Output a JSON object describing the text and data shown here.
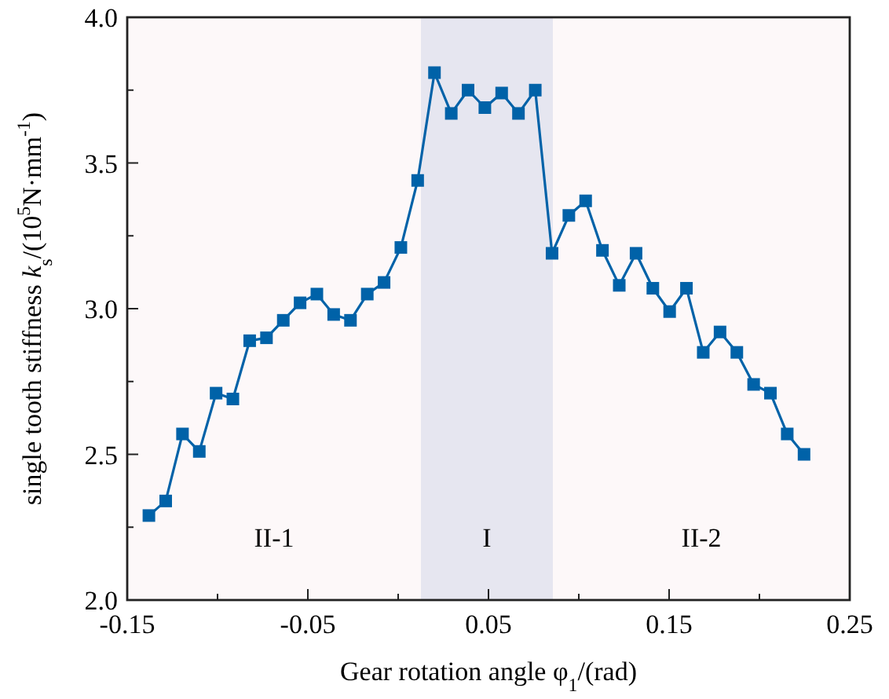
{
  "chart_data": {
    "type": "line",
    "xlabel": "Gear rotation angle  φ$_{1}$/(rad)",
    "ylabel": "single tooth stiffness k$_{s}$/(10$^{5}$N·mm$^{-1}$)",
    "x": [
      -0.138,
      -0.1287,
      -0.1194,
      -0.1101,
      -0.1008,
      -0.0915,
      -0.0822,
      -0.0729,
      -0.0636,
      -0.0543,
      -0.045,
      -0.0357,
      -0.0264,
      -0.0171,
      -0.0078,
      0.0015,
      0.0108,
      0.0201,
      0.0294,
      0.0387,
      0.048,
      0.0573,
      0.0666,
      0.0759,
      0.0852,
      0.0945,
      0.1038,
      0.1131,
      0.1224,
      0.1317,
      0.141,
      0.1503,
      0.1596,
      0.1689,
      0.1782,
      0.1875,
      0.1968,
      0.2061,
      0.2154,
      0.2247
    ],
    "series": [
      {
        "color": "#0062a8",
        "values": [
          2.29,
          2.34,
          2.57,
          2.51,
          2.71,
          2.69,
          2.89,
          2.9,
          2.96,
          3.02,
          3.05,
          2.98,
          2.96,
          3.05,
          3.09,
          3.21,
          3.44,
          3.81,
          3.67,
          3.75,
          3.69,
          3.74,
          3.67,
          3.75,
          3.19,
          3.32,
          3.37,
          3.2,
          3.08,
          3.19,
          3.07,
          2.99,
          3.07,
          2.85,
          2.92,
          2.85,
          2.74,
          2.71,
          2.57,
          2.5
        ]
      }
    ],
    "marker": "square",
    "line_style": "solid",
    "grid": false,
    "xlim": [
      -0.15,
      0.25
    ],
    "xticks": [
      -0.15,
      {
        "value": -0.1,
        "label": null
      },
      -0.05,
      {
        "value": 0,
        "label": null
      },
      0.05,
      {
        "value": 0.1,
        "label": null
      },
      0.15,
      {
        "value": 0.2,
        "label": null
      },
      0.25
    ],
    "ylim": [
      2,
      4
    ],
    "yticks": [
      {
        "value": 2,
        "label": "2.0"
      },
      {
        "value": 2.25,
        "label": null
      },
      2.5,
      {
        "value": 2.75,
        "label": null
      },
      {
        "value": 3,
        "label": "3.0"
      },
      {
        "value": 3.25,
        "label": null
      },
      3.5,
      {
        "value": 3.75,
        "label": null
      },
      {
        "value": 4,
        "label": "4.0"
      }
    ],
    "bands": [
      {
        "axis": "x",
        "from": -0.15,
        "to": 0.0126,
        "label": "II-1",
        "color": "#fdf8f9"
      },
      {
        "axis": "x",
        "from": 0.0126,
        "to": 0.0857,
        "label": "I",
        "color": "#e6e6f0"
      },
      {
        "axis": "x",
        "from": 0.0857,
        "to": 0.25,
        "label": "II-2",
        "color": "#fdf8f9"
      }
    ]
  }
}
